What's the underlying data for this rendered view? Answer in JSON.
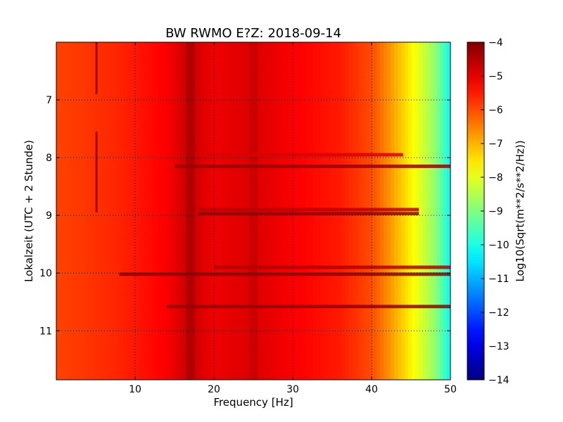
{
  "chart_data": {
    "type": "heatmap",
    "title": "BW RWMO E?Z: 2018-09-14",
    "xlabel": "Frequency [Hz]",
    "ylabel": "Lokalzeit (UTC + 2 Stunde)",
    "colorbar_label": "Log10(Sqrt(m**2/s**2/Hz))",
    "colormap": "jet",
    "xlim": [
      0,
      50
    ],
    "ylim_hours": [
      6.0,
      11.85
    ],
    "y_inverted": true,
    "x_ticks": [
      10,
      20,
      30,
      40,
      50
    ],
    "x_tick_labels": [
      "10",
      "20",
      "30",
      "40",
      "50"
    ],
    "y_ticks": [
      7,
      8,
      9,
      10,
      11
    ],
    "y_tick_labels": [
      "7",
      "8",
      "9",
      "10",
      "11"
    ],
    "color_range": [
      -14,
      -4
    ],
    "colorbar_ticks": [
      -4,
      -5,
      -6,
      -7,
      -8,
      -9,
      -10,
      -11,
      -12,
      -13,
      -14
    ],
    "colorbar_tick_labels": [
      "−4",
      "−5",
      "−6",
      "−7",
      "−8",
      "−9",
      "−10",
      "−11",
      "−12",
      "−13",
      "−14"
    ],
    "grid": true,
    "spectrum_profile": [
      {
        "f": 0,
        "v": -5.9
      },
      {
        "f": 3,
        "v": -5.8
      },
      {
        "f": 8,
        "v": -5.6
      },
      {
        "f": 14,
        "v": -5.2
      },
      {
        "f": 17,
        "v": -4.7
      },
      {
        "f": 20,
        "v": -5.1
      },
      {
        "f": 25,
        "v": -4.9
      },
      {
        "f": 30,
        "v": -5.2
      },
      {
        "f": 36,
        "v": -5.5
      },
      {
        "f": 40,
        "v": -6.0
      },
      {
        "f": 42,
        "v": -6.6
      },
      {
        "f": 44,
        "v": -7.3
      },
      {
        "f": 46,
        "v": -8.0
      },
      {
        "f": 48,
        "v": -8.8
      },
      {
        "f": 49.5,
        "v": -9.8
      },
      {
        "f": 50,
        "v": -10.4
      }
    ],
    "tonal_lines": [
      {
        "name": "17 Hz line",
        "f": 17,
        "v": -4.4,
        "t_start": 6.0,
        "t_end": 11.85
      },
      {
        "name": "25 Hz line",
        "f": 25,
        "v": -4.7,
        "t_start": 6.0,
        "t_end": 11.85
      },
      {
        "name": "5 Hz trace",
        "f": 5.1,
        "v": -4.3,
        "t_start": 6.0,
        "t_end": 6.9
      },
      {
        "name": "5 Hz trace",
        "f": 5.1,
        "v": -4.3,
        "t_start": 7.55,
        "t_end": 8.95
      }
    ],
    "broadband_bursts": [
      {
        "t": 8.15,
        "f_start": 15,
        "f_end": 50,
        "v": -4.3
      },
      {
        "t": 8.9,
        "f_start": 18,
        "f_end": 46,
        "v": -4.6
      },
      {
        "t": 8.97,
        "f_start": 18,
        "f_end": 46,
        "v": -4.2
      },
      {
        "t": 9.9,
        "f_start": 20,
        "f_end": 50,
        "v": -4.5
      },
      {
        "t": 10.02,
        "f_start": 8,
        "f_end": 50,
        "v": -4.2
      },
      {
        "t": 10.58,
        "f_start": 14,
        "f_end": 50,
        "v": -4.2
      },
      {
        "t": 7.95,
        "f_start": 18,
        "f_end": 44,
        "v": -4.9
      }
    ]
  }
}
